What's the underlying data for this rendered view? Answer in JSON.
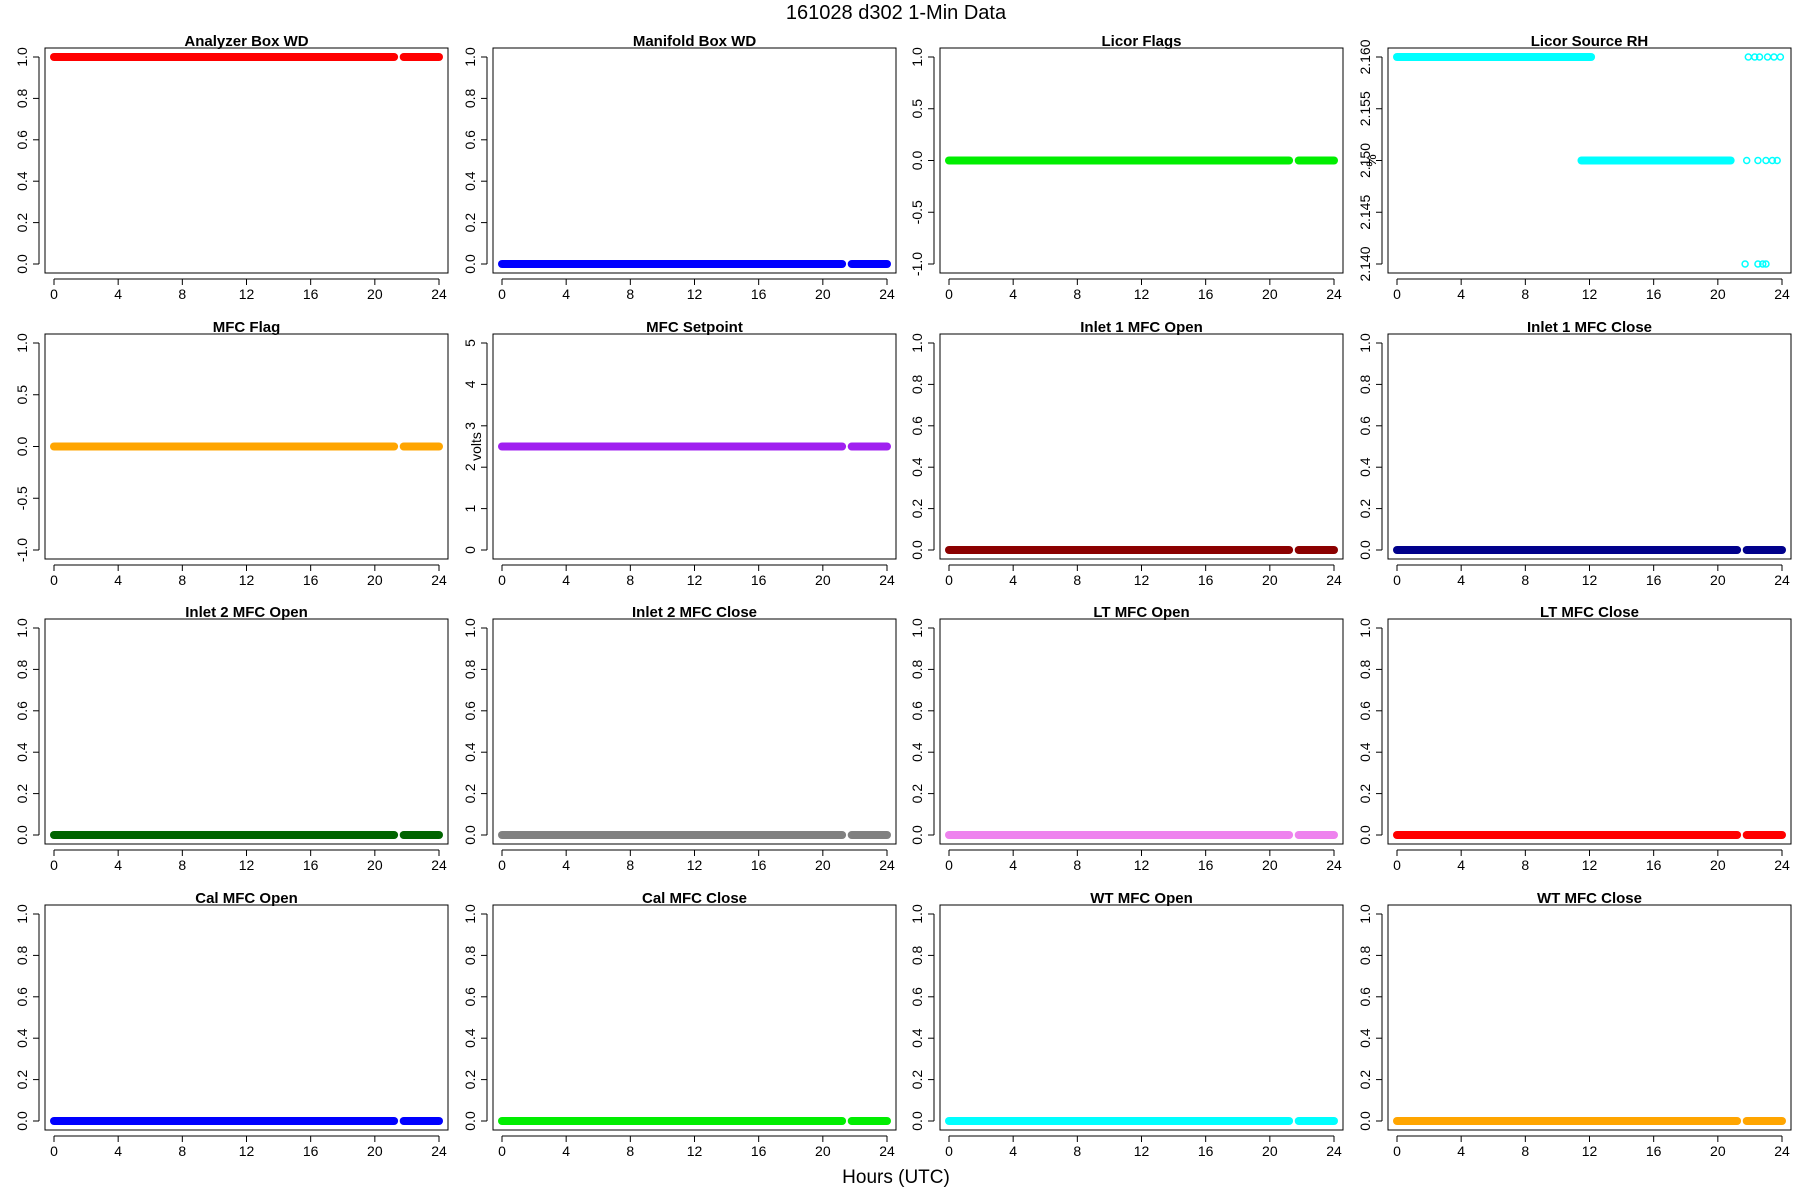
{
  "title": "161028   d302   1-Min Data",
  "xlabel": "Hours (UTC)",
  "chart_data": [
    {
      "type": "scatter",
      "title": "Analyzer Box WD",
      "ylabel": "",
      "color": "#ff0000",
      "ylim": [
        0,
        1
      ],
      "yticks": [
        "0.0",
        "0.2",
        "0.4",
        "0.6",
        "0.8",
        "1.0"
      ],
      "xlim": [
        0,
        24
      ],
      "xticks": [
        "0",
        "4",
        "8",
        "12",
        "16",
        "20",
        "24"
      ],
      "series": [
        {
          "x_start": 0,
          "x_end": 21.2,
          "y": 1
        },
        {
          "x_start": 21.8,
          "x_end": 24,
          "y": 1
        }
      ]
    },
    {
      "type": "scatter",
      "title": "Manifold Box WD",
      "ylabel": "",
      "color": "#0000ff",
      "ylim": [
        0,
        1
      ],
      "yticks": [
        "0.0",
        "0.2",
        "0.4",
        "0.6",
        "0.8",
        "1.0"
      ],
      "xlim": [
        0,
        24
      ],
      "xticks": [
        "0",
        "4",
        "8",
        "12",
        "16",
        "20",
        "24"
      ],
      "series": [
        {
          "x_start": 0,
          "x_end": 21.2,
          "y": 0
        },
        {
          "x_start": 21.8,
          "x_end": 24,
          "y": 0
        }
      ]
    },
    {
      "type": "scatter",
      "title": "Licor Flags",
      "ylabel": "",
      "color": "#00ee00",
      "ylim": [
        -1,
        1
      ],
      "yticks": [
        "-1.0",
        "-0.5",
        "0.0",
        "0.5",
        "1.0"
      ],
      "xlim": [
        0,
        24
      ],
      "xticks": [
        "0",
        "4",
        "8",
        "12",
        "16",
        "20",
        "24"
      ],
      "series": [
        {
          "x_start": 0,
          "x_end": 21.2,
          "y": 0
        },
        {
          "x_start": 21.8,
          "x_end": 24,
          "y": 0
        }
      ]
    },
    {
      "type": "scatter",
      "title": "Licor Source RH",
      "ylabel": "%",
      "color": "#00ffff",
      "ylim": [
        2.14,
        2.16
      ],
      "yticks": [
        "2.140",
        "2.145",
        "2.150",
        "2.155",
        "2.160"
      ],
      "xlim": [
        0,
        24
      ],
      "xticks": [
        "0",
        "4",
        "8",
        "12",
        "16",
        "20",
        "24"
      ],
      "series": [
        {
          "x_start": 0,
          "x_end": 12.1,
          "y": 2.16
        },
        {
          "x_start": 11.5,
          "x_end": 20.8,
          "y": 2.15
        }
      ],
      "points": [
        {
          "x": 21.9,
          "y": 2.16
        },
        {
          "x": 22.3,
          "y": 2.16
        },
        {
          "x": 22.6,
          "y": 2.16
        },
        {
          "x": 23.1,
          "y": 2.16
        },
        {
          "x": 23.5,
          "y": 2.16
        },
        {
          "x": 23.9,
          "y": 2.16
        },
        {
          "x": 21.8,
          "y": 2.15
        },
        {
          "x": 22.5,
          "y": 2.15
        },
        {
          "x": 23.0,
          "y": 2.15
        },
        {
          "x": 23.4,
          "y": 2.15
        },
        {
          "x": 23.7,
          "y": 2.15
        },
        {
          "x": 21.7,
          "y": 2.14
        },
        {
          "x": 22.5,
          "y": 2.14
        },
        {
          "x": 22.8,
          "y": 2.14
        },
        {
          "x": 23.0,
          "y": 2.14
        }
      ]
    },
    {
      "type": "scatter",
      "title": "MFC Flag",
      "ylabel": "",
      "color": "#ffa500",
      "ylim": [
        -1,
        1
      ],
      "yticks": [
        "-1.0",
        "-0.5",
        "0.0",
        "0.5",
        "1.0"
      ],
      "xlim": [
        0,
        24
      ],
      "xticks": [
        "0",
        "4",
        "8",
        "12",
        "16",
        "20",
        "24"
      ],
      "series": [
        {
          "x_start": 0,
          "x_end": 21.2,
          "y": 0
        },
        {
          "x_start": 21.8,
          "x_end": 24,
          "y": 0
        }
      ]
    },
    {
      "type": "scatter",
      "title": "MFC Setpoint",
      "ylabel": "volts",
      "color": "#a020f0",
      "ylim": [
        0,
        5
      ],
      "yticks": [
        "0",
        "1",
        "2",
        "3",
        "4",
        "5"
      ],
      "xlim": [
        0,
        24
      ],
      "xticks": [
        "0",
        "4",
        "8",
        "12",
        "16",
        "20",
        "24"
      ],
      "series": [
        {
          "x_start": 0,
          "x_end": 21.2,
          "y": 2.5
        },
        {
          "x_start": 21.8,
          "x_end": 24,
          "y": 2.5
        }
      ]
    },
    {
      "type": "scatter",
      "title": "Inlet 1 MFC Open",
      "ylabel": "",
      "color": "#8b0000",
      "ylim": [
        0,
        1
      ],
      "yticks": [
        "0.0",
        "0.2",
        "0.4",
        "0.6",
        "0.8",
        "1.0"
      ],
      "xlim": [
        0,
        24
      ],
      "xticks": [
        "0",
        "4",
        "8",
        "12",
        "16",
        "20",
        "24"
      ],
      "series": [
        {
          "x_start": 0,
          "x_end": 21.2,
          "y": 0
        },
        {
          "x_start": 21.8,
          "x_end": 24,
          "y": 0
        }
      ]
    },
    {
      "type": "scatter",
      "title": "Inlet 1 MFC Close",
      "ylabel": "",
      "color": "#00008b",
      "ylim": [
        0,
        1
      ],
      "yticks": [
        "0.0",
        "0.2",
        "0.4",
        "0.6",
        "0.8",
        "1.0"
      ],
      "xlim": [
        0,
        24
      ],
      "xticks": [
        "0",
        "4",
        "8",
        "12",
        "16",
        "20",
        "24"
      ],
      "series": [
        {
          "x_start": 0,
          "x_end": 21.2,
          "y": 0
        },
        {
          "x_start": 21.8,
          "x_end": 24,
          "y": 0
        }
      ]
    },
    {
      "type": "scatter",
      "title": "Inlet 2 MFC Open",
      "ylabel": "",
      "color": "#006400",
      "ylim": [
        0,
        1
      ],
      "yticks": [
        "0.0",
        "0.2",
        "0.4",
        "0.6",
        "0.8",
        "1.0"
      ],
      "xlim": [
        0,
        24
      ],
      "xticks": [
        "0",
        "4",
        "8",
        "12",
        "16",
        "20",
        "24"
      ],
      "series": [
        {
          "x_start": 0,
          "x_end": 21.2,
          "y": 0
        },
        {
          "x_start": 21.8,
          "x_end": 24,
          "y": 0
        }
      ]
    },
    {
      "type": "scatter",
      "title": "Inlet 2 MFC Close",
      "ylabel": "",
      "color": "#808080",
      "ylim": [
        0,
        1
      ],
      "yticks": [
        "0.0",
        "0.2",
        "0.4",
        "0.6",
        "0.8",
        "1.0"
      ],
      "xlim": [
        0,
        24
      ],
      "xticks": [
        "0",
        "4",
        "8",
        "12",
        "16",
        "20",
        "24"
      ],
      "series": [
        {
          "x_start": 0,
          "x_end": 21.2,
          "y": 0
        },
        {
          "x_start": 21.8,
          "x_end": 24,
          "y": 0
        }
      ]
    },
    {
      "type": "scatter",
      "title": "LT MFC Open",
      "ylabel": "",
      "color": "#ee82ee",
      "ylim": [
        0,
        1
      ],
      "yticks": [
        "0.0",
        "0.2",
        "0.4",
        "0.6",
        "0.8",
        "1.0"
      ],
      "xlim": [
        0,
        24
      ],
      "xticks": [
        "0",
        "4",
        "8",
        "12",
        "16",
        "20",
        "24"
      ],
      "series": [
        {
          "x_start": 0,
          "x_end": 21.2,
          "y": 0
        },
        {
          "x_start": 21.8,
          "x_end": 24,
          "y": 0
        }
      ]
    },
    {
      "type": "scatter",
      "title": "LT MFC Close",
      "ylabel": "",
      "color": "#ff0000",
      "ylim": [
        0,
        1
      ],
      "yticks": [
        "0.0",
        "0.2",
        "0.4",
        "0.6",
        "0.8",
        "1.0"
      ],
      "xlim": [
        0,
        24
      ],
      "xticks": [
        "0",
        "4",
        "8",
        "12",
        "16",
        "20",
        "24"
      ],
      "series": [
        {
          "x_start": 0,
          "x_end": 21.2,
          "y": 0
        },
        {
          "x_start": 21.8,
          "x_end": 24,
          "y": 0
        }
      ]
    },
    {
      "type": "scatter",
      "title": "Cal MFC Open",
      "ylabel": "",
      "color": "#0000ff",
      "ylim": [
        0,
        1
      ],
      "yticks": [
        "0.0",
        "0.2",
        "0.4",
        "0.6",
        "0.8",
        "1.0"
      ],
      "xlim": [
        0,
        24
      ],
      "xticks": [
        "0",
        "4",
        "8",
        "12",
        "16",
        "20",
        "24"
      ],
      "series": [
        {
          "x_start": 0,
          "x_end": 21.2,
          "y": 0
        },
        {
          "x_start": 21.8,
          "x_end": 24,
          "y": 0
        }
      ]
    },
    {
      "type": "scatter",
      "title": "Cal MFC Close",
      "ylabel": "",
      "color": "#00ee00",
      "ylim": [
        0,
        1
      ],
      "yticks": [
        "0.0",
        "0.2",
        "0.4",
        "0.6",
        "0.8",
        "1.0"
      ],
      "xlim": [
        0,
        24
      ],
      "xticks": [
        "0",
        "4",
        "8",
        "12",
        "16",
        "20",
        "24"
      ],
      "series": [
        {
          "x_start": 0,
          "x_end": 21.2,
          "y": 0
        },
        {
          "x_start": 21.8,
          "x_end": 24,
          "y": 0
        }
      ]
    },
    {
      "type": "scatter",
      "title": "WT MFC Open",
      "ylabel": "",
      "color": "#00ffff",
      "ylim": [
        0,
        1
      ],
      "yticks": [
        "0.0",
        "0.2",
        "0.4",
        "0.6",
        "0.8",
        "1.0"
      ],
      "xlim": [
        0,
        24
      ],
      "xticks": [
        "0",
        "4",
        "8",
        "12",
        "16",
        "20",
        "24"
      ],
      "series": [
        {
          "x_start": 0,
          "x_end": 21.2,
          "y": 0
        },
        {
          "x_start": 21.8,
          "x_end": 24,
          "y": 0
        }
      ]
    },
    {
      "type": "scatter",
      "title": "WT MFC Close",
      "ylabel": "",
      "color": "#ffa500",
      "ylim": [
        0,
        1
      ],
      "yticks": [
        "0.0",
        "0.2",
        "0.4",
        "0.6",
        "0.8",
        "1.0"
      ],
      "xlim": [
        0,
        24
      ],
      "xticks": [
        "0",
        "4",
        "8",
        "12",
        "16",
        "20",
        "24"
      ],
      "series": [
        {
          "x_start": 0,
          "x_end": 21.2,
          "y": 0
        },
        {
          "x_start": 21.8,
          "x_end": 24,
          "y": 0
        }
      ]
    }
  ]
}
